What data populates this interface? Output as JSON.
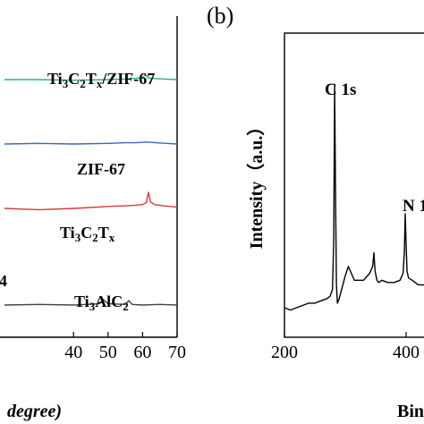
{
  "chart_data": [
    {
      "panel": "",
      "type": "line",
      "xlabel": "degree)",
      "ylabel": "",
      "xlim": [
        20,
        70
      ],
      "xticks": [
        {
          "v": 40,
          "label": "40"
        },
        {
          "v": 50,
          "label": "50"
        },
        {
          "v": 60,
          "label": "60"
        },
        {
          "v": 70,
          "label": "70"
        }
      ],
      "colors": {
        "zif_composite": "#2bb56a",
        "zif67": "#3f63c6",
        "mxene": "#d83a3a",
        "max": "#444444"
      },
      "series": [
        {
          "key": "zif_composite",
          "name": "Ti₃C₂Tₓ/ZIF-67",
          "baseline": 0.8,
          "x": [
            20,
            30,
            40,
            50,
            55,
            58,
            60,
            60.8,
            61.5,
            62.5,
            66,
            70
          ],
          "y": [
            0.0,
            0.0,
            -0.002,
            0.0,
            0.002,
            0.004,
            0.006,
            0.016,
            0.006,
            0.004,
            0.002,
            0.0
          ]
        },
        {
          "key": "zif67",
          "name": "ZIF-67",
          "baseline": 0.6,
          "x": [
            20,
            30,
            40,
            50,
            55,
            58,
            61,
            64,
            67,
            70
          ],
          "y": [
            0.0,
            0.002,
            0.0,
            0.002,
            0.004,
            0.004,
            0.006,
            0.004,
            0.002,
            0.0
          ]
        },
        {
          "key": "mxene",
          "name": "Ti₃C₂Tₓ",
          "baseline": 0.4,
          "x": [
            20,
            30,
            40,
            50,
            55,
            58,
            60,
            61.1,
            61.7,
            62.3,
            63.5,
            66,
            70
          ],
          "y": [
            0.0,
            -0.004,
            0.0,
            0.006,
            0.008,
            0.01,
            0.012,
            0.018,
            0.05,
            0.02,
            0.012,
            0.008,
            0.004
          ]
        },
        {
          "key": "max",
          "name": "Ti₃AlC₂",
          "baseline": 0.1,
          "x": [
            20,
            30,
            40,
            44,
            47.5,
            48.5,
            50,
            55,
            56,
            57,
            60,
            65,
            70
          ],
          "y": [
            0.0,
            0.002,
            0.0,
            0.002,
            0.004,
            0.018,
            0.004,
            0.002,
            0.014,
            0.002,
            0.0,
            0.002,
            0.0
          ]
        }
      ],
      "labels": [
        {
          "key": "zif_composite",
          "text": "Ti₃C₂Tₓ/ZIF-67"
        },
        {
          "key": "zif67",
          "text": "ZIF-67"
        },
        {
          "key": "mxene",
          "text": "Ti₃C₂Tₓ"
        },
        {
          "key": "max",
          "text": "Ti₃AlC₂"
        }
      ],
      "cut_label": "4"
    },
    {
      "panel": "(b)",
      "type": "line",
      "xlabel": "Bin",
      "ylabel": "Intensity（a.u.）",
      "xlim": [
        200,
        450
      ],
      "xticks": [
        {
          "v": 200,
          "label": "200"
        },
        {
          "v": 400,
          "label": "400"
        }
      ],
      "series": [
        {
          "name": "",
          "x": [
            200,
            210,
            220,
            230,
            240,
            250,
            260,
            270,
            275,
            279,
            281,
            282.5,
            284,
            285.5,
            287,
            290,
            300,
            305,
            310,
            315,
            320,
            330,
            340,
            345,
            347,
            349,
            352,
            355,
            360,
            370,
            380,
            390,
            395,
            397,
            398.5,
            400,
            401.5,
            404,
            410,
            420,
            430,
            440,
            450
          ],
          "y": [
            0.0,
            -0.01,
            0.0,
            0.01,
            0.02,
            0.02,
            0.03,
            0.04,
            0.05,
            0.08,
            0.3,
            0.97,
            0.5,
            0.1,
            0.02,
            0.04,
            0.14,
            0.18,
            0.15,
            0.12,
            0.12,
            0.12,
            0.15,
            0.18,
            0.24,
            0.16,
            0.12,
            0.11,
            0.12,
            0.11,
            0.11,
            0.12,
            0.15,
            0.24,
            0.41,
            0.28,
            0.16,
            0.13,
            0.12,
            0.1,
            0.1,
            0.09,
            0.09
          ]
        }
      ],
      "peaks": [
        {
          "label": "C 1s"
        },
        {
          "label": "N 1"
        }
      ]
    }
  ]
}
